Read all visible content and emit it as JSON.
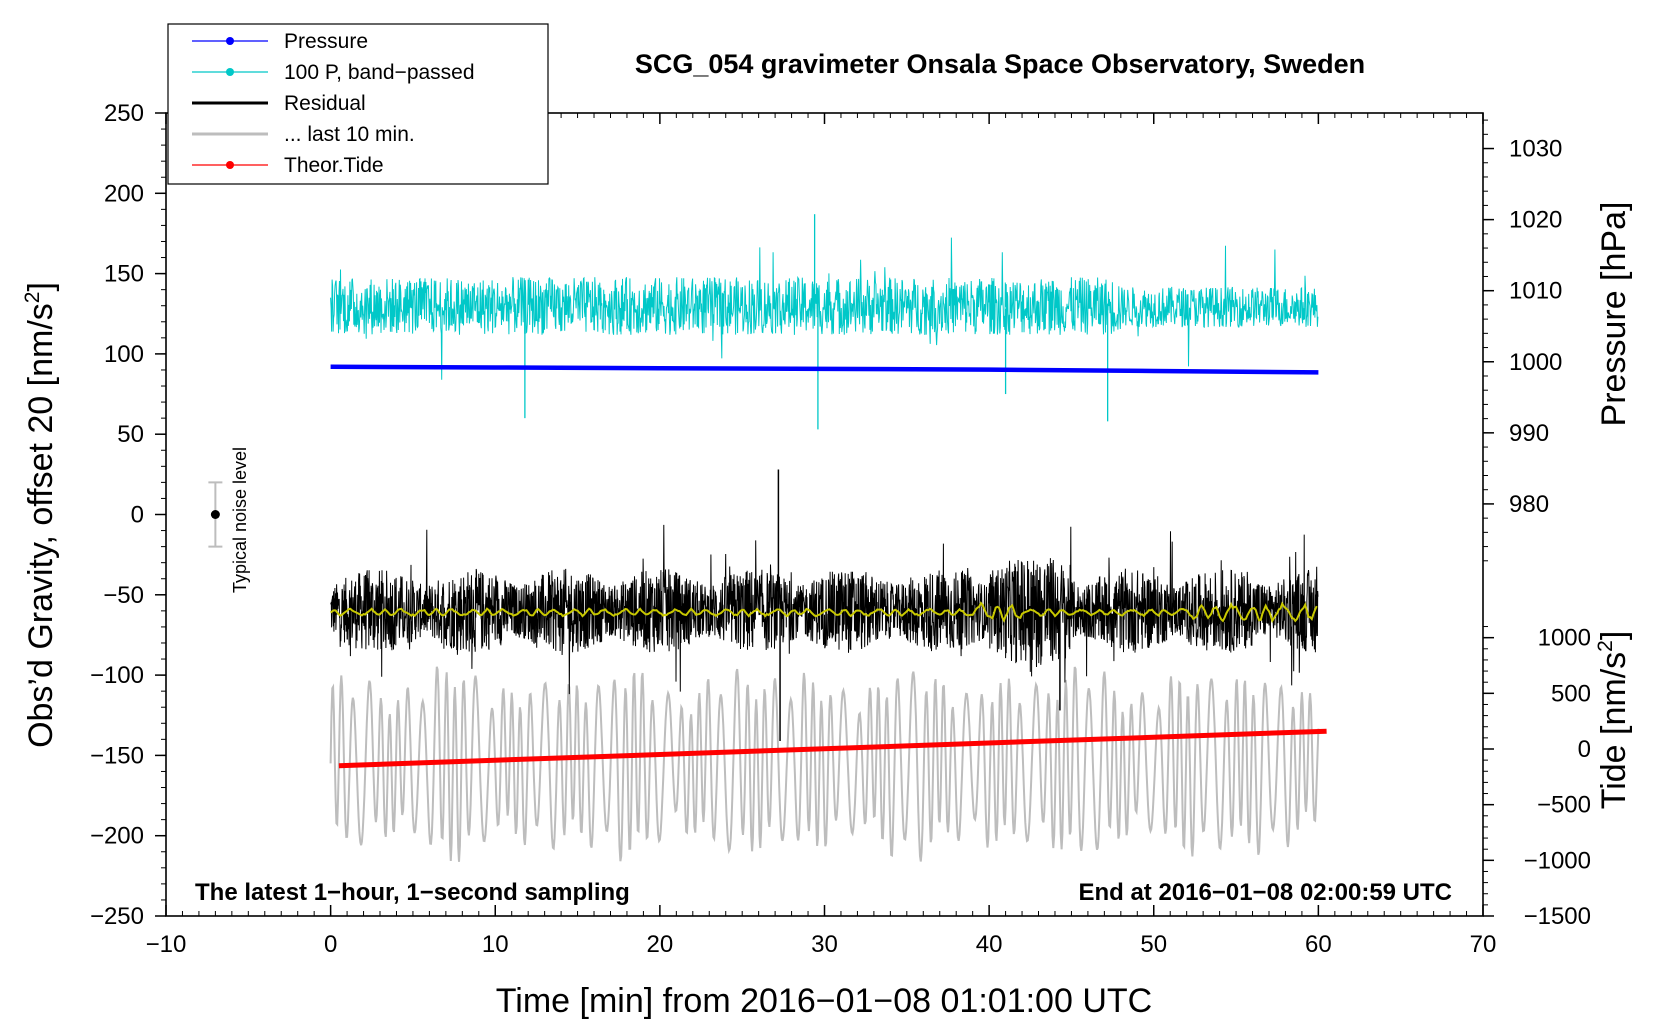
{
  "chart_data": {
    "type": "line",
    "title": "SCG_054 gravimeter Onsala Space Observatory, Sweden",
    "xlabel": "Time [min] from 2016−01−08 01:01:00 UTC",
    "ylabel_main": "Obs’d Gravity, offset 20 [nm/s",
    "ylabel_pressure": "Pressure [hPa]",
    "ylabel_tide": "Tide [nm/s",
    "superscript": "2",
    "ylabel_close": "]",
    "xlim": [
      -10,
      70
    ],
    "ylim": [
      -250,
      250
    ],
    "pressure_ylim": [
      970.0,
      1035.0
    ],
    "tide_ylim": [
      -1500,
      1500
    ],
    "x_ticks": [
      -10,
      0,
      10,
      20,
      30,
      40,
      50,
      60,
      70
    ],
    "x_tick_labels": [
      "−10",
      "0",
      "10",
      "20",
      "30",
      "40",
      "50",
      "60",
      "70"
    ],
    "y_ticks": [
      250,
      200,
      150,
      100,
      50,
      0,
      -50,
      -100,
      -150,
      -200,
      -250
    ],
    "y_tick_labels": [
      "250",
      "200",
      "150",
      "100",
      "50",
      "0",
      "−50",
      "−100",
      "−150",
      "−200",
      "−250"
    ],
    "pressure_ticks": [
      980,
      990,
      1000,
      1010,
      1020,
      1030
    ],
    "pressure_tick_labels": [
      "980",
      "990",
      "1000",
      "1010",
      "1020",
      "1030"
    ],
    "tide_ticks": [
      -1500,
      -1000,
      -500,
      0,
      500,
      1000
    ],
    "tide_tick_labels": [
      "−1500",
      "−1000",
      "−500",
      "0",
      "500",
      "1000"
    ],
    "legend": {
      "position": "top-left",
      "entries": [
        {
          "label": "Pressure",
          "color": "#0000ff",
          "style": "line-dot"
        },
        {
          "label": "100 P, band−passed",
          "color": "#00c8c8",
          "style": "line-dot"
        },
        {
          "label": "Residual",
          "color": "#000000",
          "style": "line"
        },
        {
          "label": "... last 10 min.",
          "color": "#bdbdbd",
          "style": "line"
        },
        {
          "label": "Theor.Tide",
          "color": "#ff0000",
          "style": "line-dot"
        }
      ]
    },
    "annotations": {
      "left_note": "The latest 1−hour, 1−second sampling",
      "right_note": "End at 2016−01−08 02:00:59 UTC",
      "noise_label": "Typical noise level",
      "noise_point": {
        "x": -7,
        "y": 0,
        "err": 20
      }
    },
    "series": [
      {
        "name": "Pressure",
        "axis": "pressure",
        "color": "#0000ff",
        "x": [
          0,
          10,
          20,
          30,
          40,
          50,
          60
        ],
        "values": [
          999.3,
          999.2,
          999.1,
          999.0,
          998.9,
          998.7,
          998.5
        ]
      },
      {
        "name": "100 P, band−passed",
        "axis": "main",
        "color": "#00c8c8",
        "x_range": [
          0,
          60
        ],
        "baseline": 128,
        "amplitude": 18,
        "spikes": [
          {
            "x": 11.8,
            "v": 60
          },
          {
            "x": 29.6,
            "v": 53
          },
          {
            "x": 29.4,
            "v": 187
          },
          {
            "x": 47.2,
            "v": 58
          },
          {
            "x": 41.0,
            "v": 75
          }
        ]
      },
      {
        "name": "Residual",
        "axis": "main",
        "color": "#000000",
        "x_range": [
          0,
          60
        ],
        "baseline": -60,
        "amplitude": 22,
        "spikes": [
          {
            "x": 27.2,
            "v": 28
          },
          {
            "x": 27.3,
            "v": -141
          },
          {
            "x": 44.3,
            "v": -122
          }
        ]
      },
      {
        "name": "Residual (smoothed)",
        "axis": "main",
        "color": "#c8c800",
        "x_range": [
          0,
          60
        ],
        "baseline": -61,
        "amplitude": 2
      },
      {
        "name": "... last 10 min.",
        "axis": "main",
        "color": "#bdbdbd",
        "x_range": [
          0,
          60
        ],
        "baseline": -155,
        "amplitude": 35
      },
      {
        "name": "Theor.Tide",
        "axis": "tide",
        "color": "#ff0000",
        "x": [
          0.5,
          60.5
        ],
        "values": [
          -150,
          160
        ]
      }
    ]
  }
}
